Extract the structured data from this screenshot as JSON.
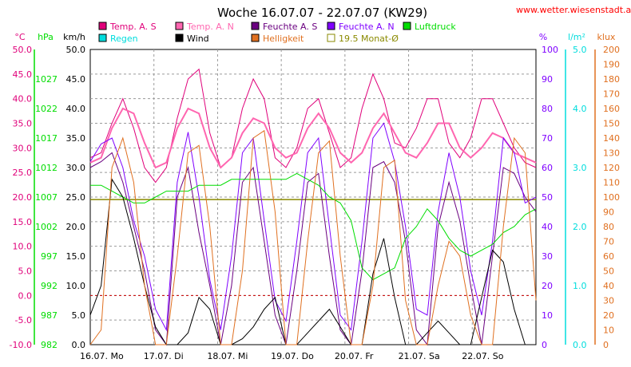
{
  "title": "Woche 16.07.07 - 22.07.07 (KW29)",
  "source": "www.wetter.wiesenstadt.at.tt",
  "colors": {
    "temp_s": "#e0007a",
    "temp_n": "#ff66b0",
    "feuchte_s": "#6a0080",
    "feuchte_n": "#7f00ff",
    "luftdruck": "#00dd00",
    "regen": "#00dddd",
    "wind": "#000000",
    "helligkeit": "#e07020",
    "monat": "#8a8a00",
    "grid": "#9a9a9a",
    "zero": "#cc0000"
  },
  "legend": [
    {
      "key": "temp_s",
      "label": "Temp. A. S"
    },
    {
      "key": "temp_n",
      "label": "Temp. A. N"
    },
    {
      "key": "feuchte_s",
      "label": "Feuchte A. S"
    },
    {
      "key": "feuchte_n",
      "label": "Feuchte A. N"
    },
    {
      "key": "luftdruck",
      "label": "Luftdruck"
    },
    {
      "key": "regen",
      "label": "Regen"
    },
    {
      "key": "wind",
      "label": "Wind"
    },
    {
      "key": "helligkeit",
      "label": "Helligkeit"
    },
    {
      "key": "monat",
      "label": "19.5 Monat-Ø"
    }
  ],
  "chart_data": {
    "type": "line",
    "title": "Woche 16.07.07 - 22.07.07 (KW29)",
    "grid": true,
    "x_labels": [
      "16.07. Mo",
      "17.07. Di",
      "18.07. Mi",
      "19.07. Do",
      "20.07. Fr",
      "21.07. Sa",
      "22.07. So"
    ],
    "axes": {
      "temp": {
        "unit": "°C",
        "range": [
          -10,
          50
        ],
        "ticks": [
          "-10.0",
          "-5.0",
          "0.0",
          "5.0",
          "10.0",
          "15.0",
          "20.0",
          "25.0",
          "30.0",
          "35.0",
          "40.0",
          "45.0",
          "50.0"
        ]
      },
      "press": {
        "unit": "hPa",
        "ticks": [
          "982",
          "987",
          "992",
          "997",
          "1002",
          "1007",
          "1012",
          "1017",
          "1022",
          "1027"
        ]
      },
      "wind": {
        "unit": "km/h",
        "range": [
          0,
          50
        ],
        "ticks": [
          "0.0",
          "5.0",
          "10.0",
          "15.0",
          "20.0",
          "25.0",
          "30.0",
          "35.0",
          "40.0",
          "45.0",
          "50.0"
        ]
      },
      "hum": {
        "unit": "%",
        "range": [
          0,
          100
        ],
        "ticks": [
          "0",
          "10",
          "20",
          "30",
          "40",
          "50",
          "60",
          "70",
          "80",
          "90",
          "100"
        ]
      },
      "rain": {
        "unit": "l/m²",
        "range": [
          0,
          5
        ],
        "ticks": [
          "0.0",
          "1.0",
          "2.0",
          "3.0",
          "4.0",
          "5.0"
        ]
      },
      "lux": {
        "unit": "klux",
        "range": [
          0,
          200
        ],
        "ticks": [
          "0",
          "10",
          "20",
          "30",
          "40",
          "50",
          "60",
          "70",
          "80",
          "90",
          "100",
          "110",
          "120",
          "130",
          "140",
          "150",
          "160",
          "170",
          "180",
          "190",
          "200"
        ]
      }
    },
    "monthly_avg_temp": 19.5,
    "series": [
      {
        "name": "Temp. A. S",
        "color_key": "temp_s",
        "axis": "temp",
        "y": [
          28,
          29,
          35,
          40,
          34,
          26,
          23,
          26,
          36,
          44,
          46,
          33,
          26,
          28,
          38,
          44,
          40,
          28,
          26,
          30,
          38,
          40,
          33,
          26,
          28,
          38,
          45,
          40,
          31,
          30,
          34,
          40,
          40,
          31,
          28,
          32,
          40,
          40,
          35,
          30,
          27,
          26
        ]
      },
      {
        "name": "Temp. A. N",
        "color_key": "temp_n",
        "axis": "temp",
        "y": [
          27,
          28,
          34,
          38,
          37,
          31,
          26,
          27,
          34,
          38,
          37,
          30,
          26,
          28,
          33,
          36,
          35,
          30,
          28,
          29,
          34,
          37,
          34,
          29,
          27,
          29,
          34,
          37,
          33,
          29,
          28,
          31,
          35,
          35,
          30,
          28,
          30,
          33,
          32,
          29,
          28,
          27
        ]
      },
      {
        "name": "Feuchte A. S",
        "color_key": "feuchte_s",
        "axis": "hum",
        "y": [
          60,
          62,
          65,
          55,
          40,
          25,
          5,
          0,
          50,
          60,
          38,
          20,
          0,
          20,
          55,
          60,
          35,
          10,
          0,
          25,
          55,
          58,
          30,
          5,
          0,
          25,
          60,
          62,
          55,
          35,
          5,
          0,
          40,
          55,
          42,
          20,
          0,
          30,
          60,
          58,
          50,
          45
        ]
      },
      {
        "name": "Feuchte A. N",
        "color_key": "feuchte_n",
        "axis": "hum",
        "y": [
          62,
          68,
          70,
          60,
          42,
          30,
          12,
          5,
          55,
          72,
          50,
          22,
          5,
          30,
          65,
          70,
          42,
          15,
          8,
          35,
          65,
          70,
          40,
          10,
          5,
          35,
          70,
          75,
          62,
          40,
          12,
          10,
          45,
          65,
          50,
          25,
          10,
          35,
          70,
          65,
          48,
          50
        ]
      },
      {
        "name": "Luftdruck",
        "color_key": "luftdruck",
        "axis": "press",
        "y": [
          1009,
          1009,
          1008,
          1007,
          1006,
          1006,
          1007,
          1008,
          1008,
          1008,
          1009,
          1009,
          1009,
          1010,
          1010,
          1010,
          1010,
          1010,
          1010,
          1011,
          1010,
          1009,
          1007,
          1006,
          1003,
          995,
          993,
          994,
          995,
          1000,
          1002,
          1005,
          1003,
          1000,
          998,
          997,
          998,
          999,
          1001,
          1002,
          1004,
          1005
        ]
      },
      {
        "name": "Wind",
        "color_key": "wind",
        "axis": "wind",
        "y": [
          5,
          10,
          28,
          25,
          18,
          10,
          3,
          0,
          0,
          2,
          8,
          6,
          0,
          0,
          1,
          3,
          6,
          8,
          0,
          0,
          2,
          4,
          6,
          3,
          0,
          0,
          12,
          18,
          8,
          0,
          0,
          2,
          4,
          2,
          0,
          0,
          8,
          16,
          14,
          6,
          0,
          0
        ]
      },
      {
        "name": "Helligkeit",
        "color_key": "helligkeit",
        "axis": "lux",
        "y": [
          0,
          10,
          120,
          140,
          110,
          40,
          0,
          0,
          60,
          130,
          135,
          80,
          0,
          0,
          50,
          140,
          145,
          90,
          0,
          0,
          70,
          130,
          138,
          60,
          0,
          0,
          40,
          120,
          125,
          30,
          0,
          0,
          40,
          70,
          60,
          20,
          0,
          0,
          80,
          140,
          130,
          30
        ]
      }
    ]
  }
}
